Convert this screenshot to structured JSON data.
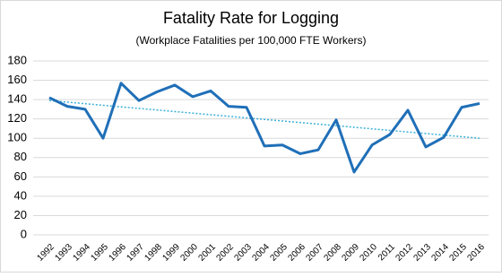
{
  "chart_data": {
    "type": "line",
    "title": "Fatality Rate for Logging",
    "subtitle": "(Workplace Fatalities per 100,000 FTE Workers)",
    "categories": [
      "1992",
      "1993",
      "1994",
      "1995",
      "1996",
      "1997",
      "1998",
      "1999",
      "2000",
      "2001",
      "2002",
      "2003",
      "2004",
      "2005",
      "2006",
      "2007",
      "2008",
      "2009",
      "2010",
      "2011",
      "2012",
      "2013",
      "2014",
      "2015",
      "2016"
    ],
    "series": [
      {
        "color": "#1f6fb8",
        "values": [
          142,
          133,
          130,
          100,
          157,
          139,
          148,
          155,
          143,
          149,
          133,
          132,
          92,
          93,
          84,
          88,
          119,
          65,
          93,
          104,
          129,
          91,
          101,
          132,
          136
        ]
      }
    ],
    "trend": {
      "color": "#3bb0d9",
      "values": [
        139,
        100
      ]
    },
    "ylim": [
      0,
      180
    ],
    "yticks": [
      0,
      20,
      40,
      60,
      80,
      100,
      120,
      140,
      160,
      180
    ],
    "grid": true
  }
}
